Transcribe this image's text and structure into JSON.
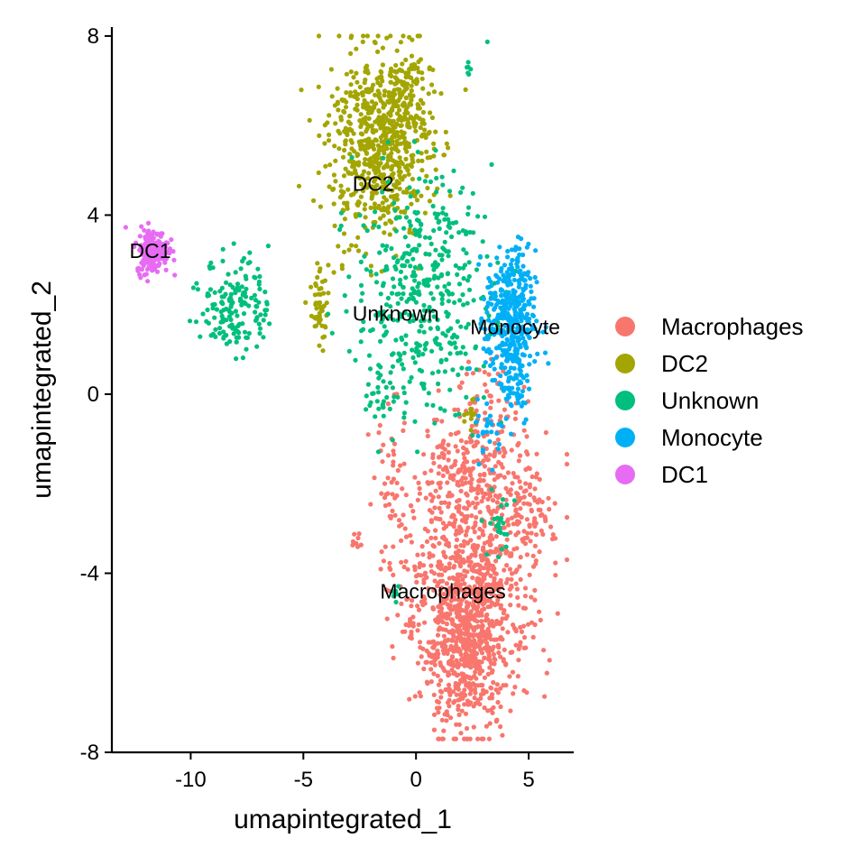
{
  "chart_data": {
    "type": "scatter",
    "title": "",
    "xlabel": "umapintegrated_1",
    "ylabel": "umapintegrated_2",
    "xlim": [
      -13.5,
      7
    ],
    "ylim": [
      -8,
      8.2
    ],
    "xticks": [
      -10,
      -5,
      0,
      5
    ],
    "yticks": [
      8,
      4,
      0,
      -4,
      -8
    ],
    "xtick_labels": [
      "-10",
      "-5",
      "0",
      "5"
    ],
    "ytick_labels": [
      "8",
      "4",
      "0",
      "-4",
      "-8"
    ],
    "grid": false,
    "legend": {
      "placement": "right",
      "entries": [
        "Macrophages",
        "DC2",
        "Unknown",
        "Monocyte",
        "DC1"
      ]
    },
    "series": [
      {
        "name": "Macrophages",
        "color": "#F8766D",
        "clusters": [
          {
            "cx": 2.2,
            "cy": -5.5,
            "sx": 1.0,
            "sy": 1.0,
            "n": 700
          },
          {
            "cx": 2.8,
            "cy": -3.6,
            "sx": 1.6,
            "sy": 1.3,
            "n": 500
          },
          {
            "cx": 2.3,
            "cy": -1.8,
            "sx": 1.3,
            "sy": 0.7,
            "n": 200
          },
          {
            "cx": 5.0,
            "cy": -2.8,
            "sx": 0.5,
            "sy": 0.6,
            "n": 60
          },
          {
            "cx": -1.0,
            "cy": -2.4,
            "sx": 0.5,
            "sy": 1.0,
            "n": 50
          },
          {
            "cx": -2.7,
            "cy": -3.3,
            "sx": 0.12,
            "sy": 0.12,
            "n": 10
          },
          {
            "cx": 3.4,
            "cy": 0.0,
            "sx": 0.7,
            "sy": 0.5,
            "n": 40
          },
          {
            "cx": -0.2,
            "cy": -5.0,
            "sx": 0.2,
            "sy": 0.25,
            "n": 15
          }
        ],
        "label": {
          "text": "Macrophages",
          "x": 1.2,
          "y": -4.4
        }
      },
      {
        "name": "DC2",
        "color": "#A3A500",
        "clusters": [
          {
            "cx": -1.6,
            "cy": 5.6,
            "sx": 1.15,
            "sy": 1.0,
            "n": 650
          },
          {
            "cx": -0.5,
            "cy": 6.8,
            "sx": 0.45,
            "sy": 0.5,
            "n": 90
          },
          {
            "cx": -4.3,
            "cy": 1.9,
            "sx": 0.2,
            "sy": 0.4,
            "n": 50
          },
          {
            "cx": 2.4,
            "cy": -0.4,
            "sx": 0.15,
            "sy": 0.25,
            "n": 12
          },
          {
            "cx": -3.4,
            "cy": 3.0,
            "sx": 0.5,
            "sy": 0.3,
            "n": 10
          }
        ],
        "label": {
          "text": "DC2",
          "x": -1.9,
          "y": 4.7
        }
      },
      {
        "name": "Unknown",
        "color": "#00BF7D",
        "clusters": [
          {
            "cx": 0.3,
            "cy": 2.3,
            "sx": 1.5,
            "sy": 1.3,
            "n": 420
          },
          {
            "cx": -8.0,
            "cy": 2.0,
            "sx": 0.75,
            "sy": 0.55,
            "n": 160
          },
          {
            "cx": -1.6,
            "cy": 0.0,
            "sx": 0.45,
            "sy": 0.3,
            "n": 30
          },
          {
            "cx": 3.8,
            "cy": -2.9,
            "sx": 0.3,
            "sy": 0.4,
            "n": 25
          },
          {
            "cx": 2.3,
            "cy": 7.3,
            "sx": 0.08,
            "sy": 0.1,
            "n": 6
          },
          {
            "cx": -0.9,
            "cy": -4.5,
            "sx": 0.1,
            "sy": 0.1,
            "n": 8
          }
        ],
        "label": {
          "text": "Unknown",
          "x": -0.9,
          "y": 1.8
        }
      },
      {
        "name": "Monocyte",
        "color": "#00B0F6",
        "clusters": [
          {
            "cx": 4.2,
            "cy": 1.7,
            "sx": 0.55,
            "sy": 0.75,
            "n": 380
          },
          {
            "cx": 4.4,
            "cy": 0.3,
            "sx": 0.35,
            "sy": 0.5,
            "n": 60
          },
          {
            "cx": 3.3,
            "cy": -0.8,
            "sx": 0.3,
            "sy": 0.35,
            "n": 25
          }
        ],
        "label": {
          "text": "Monocyte",
          "x": 4.4,
          "y": 1.5
        }
      },
      {
        "name": "DC1",
        "color": "#E76BF3",
        "clusters": [
          {
            "cx": -11.7,
            "cy": 3.2,
            "sx": 0.35,
            "sy": 0.25,
            "n": 210
          }
        ],
        "label": {
          "text": "DC1",
          "x": -11.8,
          "y": 3.2
        }
      }
    ]
  }
}
